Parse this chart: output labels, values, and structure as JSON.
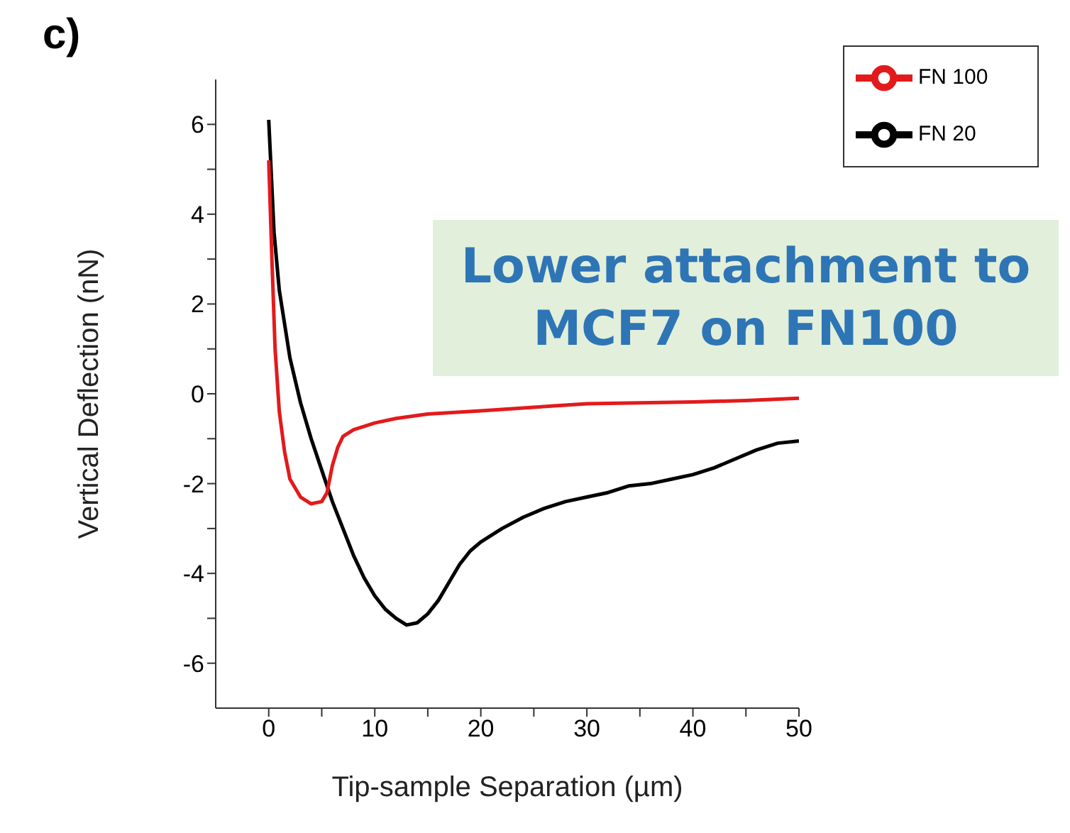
{
  "chart_data": {
    "type": "line",
    "title": "c)",
    "xlabel": "Tip-sample Separation (µm)",
    "ylabel": "Vertical Deflection (nN)",
    "annotations": [
      "Lower attachment to MCF7 on FN100"
    ],
    "xlim": [
      -5,
      50
    ],
    "xticks": [
      0,
      {
        "value": 5,
        "label": null
      },
      10,
      {
        "value": 15,
        "label": null
      },
      20,
      {
        "value": 25,
        "label": null
      },
      30,
      {
        "value": 35,
        "label": null
      },
      40,
      {
        "value": 45,
        "label": null
      },
      50
    ],
    "ylim": [
      -7,
      7
    ],
    "yticks": [
      -6,
      {
        "value": -5,
        "label": null
      },
      -4,
      {
        "value": -3,
        "label": null
      },
      -2,
      {
        "value": -1,
        "label": null
      },
      0,
      {
        "value": 1,
        "label": null
      },
      2,
      {
        "value": 3,
        "label": null
      },
      4,
      {
        "value": 5,
        "label": null
      },
      6
    ],
    "grid": false,
    "legend": "top right",
    "marker": "none",
    "line_style": "solid",
    "series": [
      {
        "name": "FN 20",
        "color": "#000000",
        "x": [
          0,
          0.5,
          1,
          2,
          3,
          4,
          5,
          6,
          7,
          8,
          9,
          10,
          11,
          12,
          13,
          14,
          15,
          16,
          17,
          18,
          19,
          20,
          22,
          24,
          26,
          28,
          30,
          32,
          34,
          36,
          38,
          40,
          42,
          44,
          46,
          48,
          50
        ],
        "values": [
          6.1,
          3.6,
          2.3,
          0.8,
          -0.2,
          -1.0,
          -1.7,
          -2.4,
          -3.0,
          -3.6,
          -4.1,
          -4.5,
          -4.8,
          -5.0,
          -5.15,
          -5.1,
          -4.9,
          -4.6,
          -4.2,
          -3.8,
          -3.5,
          -3.3,
          -3.0,
          -2.75,
          -2.55,
          -2.4,
          -2.3,
          -2.2,
          -2.05,
          -2.0,
          -1.9,
          -1.8,
          -1.65,
          -1.45,
          -1.25,
          -1.1,
          -1.05
        ]
      },
      {
        "name": "FN 100",
        "color": "#e31a1c",
        "x": [
          0,
          0.3,
          0.6,
          1,
          1.5,
          2,
          3,
          4,
          5,
          5.5,
          6,
          6.5,
          7,
          8,
          10,
          12,
          15,
          20,
          25,
          30,
          35,
          40,
          45,
          50
        ],
        "values": [
          5.2,
          3.0,
          1.0,
          -0.4,
          -1.3,
          -1.9,
          -2.3,
          -2.45,
          -2.4,
          -2.2,
          -1.6,
          -1.2,
          -0.95,
          -0.8,
          -0.65,
          -0.55,
          -0.45,
          -0.38,
          -0.3,
          -0.22,
          -0.2,
          -0.18,
          -0.15,
          -0.1
        ]
      }
    ]
  }
}
